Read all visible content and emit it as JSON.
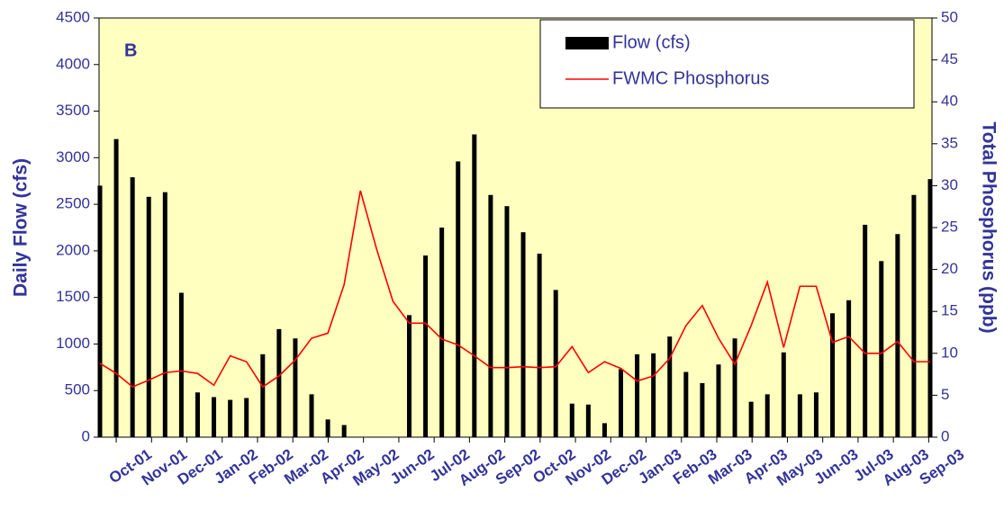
{
  "chart_data": {
    "type": "bar_line",
    "annotation": "B",
    "y_label": "Daily Flow (cfs)",
    "y2_label": "Total Phosphorus (ppb)",
    "categories": [
      null,
      null,
      null,
      null,
      null,
      null,
      null,
      null,
      null,
      null,
      null,
      null,
      null,
      null,
      null,
      null,
      null,
      null,
      null,
      null,
      null,
      null,
      null,
      null,
      null,
      null,
      null,
      null,
      null,
      null,
      null,
      null,
      null,
      null,
      null,
      null,
      null,
      null,
      null,
      null,
      null,
      null,
      null,
      null,
      null,
      null,
      null,
      null,
      null,
      null,
      null,
      null
    ],
    "series": [
      {
        "name": "Flow (cfs)",
        "type": "bar",
        "color": "#000000",
        "values": [
          2700,
          3200,
          2790,
          2580,
          2630,
          1550,
          480,
          430,
          400,
          420,
          890,
          1160,
          1060,
          460,
          190,
          130,
          null,
          null,
          null,
          1310,
          1950,
          2250,
          2960,
          3250,
          2600,
          2480,
          2200,
          1970,
          1580,
          360,
          350,
          150,
          730,
          890,
          900,
          1080,
          700,
          580,
          780,
          1060,
          380,
          460,
          910,
          460,
          480,
          1330,
          1470,
          2280,
          1890,
          2180,
          2600,
          2770
        ]
      },
      {
        "name": "FWMC Phosphorus",
        "type": "line",
        "color": "#ff0000",
        "axis": "y2",
        "values": [
          8.8,
          7.6,
          6.0,
          6.8,
          7.7,
          7.9,
          7.6,
          6.2,
          9.7,
          9.0,
          6.0,
          7.3,
          9.2,
          11.8,
          12.4,
          18.2,
          29.4,
          22.4,
          16.2,
          13.6,
          13.6,
          11.7,
          11.0,
          9.7,
          8.3,
          8.3,
          8.4,
          8.3,
          8.4,
          10.8,
          7.7,
          9.0,
          8.2,
          6.7,
          7.3,
          9.4,
          13.3,
          15.7,
          11.8,
          8.7,
          13.3,
          18.5,
          10.7,
          18.0,
          18.0,
          11.3,
          12.0,
          10.0,
          10.0,
          11.4,
          9.0,
          9.0
        ]
      }
    ],
    "xticks": [
      {
        "value": 1.0,
        "label": "Oct-01"
      },
      {
        "value": 3.17,
        "label": "Nov-01"
      },
      {
        "value": 5.34,
        "label": "Dec-01"
      },
      {
        "value": 7.51,
        "label": "Jan-02"
      },
      {
        "value": 9.68,
        "label": "Feb-02"
      },
      {
        "value": 11.85,
        "label": "Mar-02"
      },
      {
        "value": 14.02,
        "label": "Apr-02"
      },
      {
        "value": 16.19,
        "label": "May-02"
      },
      {
        "value": 18.36,
        "label": "Jun-02"
      },
      {
        "value": 20.53,
        "label": "Jul-02"
      },
      {
        "value": 22.7,
        "label": "Aug-02"
      },
      {
        "value": 24.87,
        "label": "Sep-02"
      },
      {
        "value": 27.04,
        "label": "Oct-02"
      },
      {
        "value": 29.21,
        "label": "Nov-02"
      },
      {
        "value": 31.38,
        "label": "Dec-02"
      },
      {
        "value": 33.55,
        "label": "Jan-03"
      },
      {
        "value": 35.72,
        "label": "Feb-03"
      },
      {
        "value": 37.89,
        "label": "Mar-03"
      },
      {
        "value": 40.06,
        "label": "Apr-03"
      },
      {
        "value": 42.23,
        "label": "May-03"
      },
      {
        "value": 44.4,
        "label": "Jun-03"
      },
      {
        "value": 46.57,
        "label": "Jul-03"
      },
      {
        "value": 48.74,
        "label": "Aug-03"
      },
      {
        "value": 50.91,
        "label": "Sep-03"
      }
    ],
    "ylim": [
      0,
      4500
    ],
    "yticks": [
      0,
      500,
      1000,
      1500,
      2000,
      2500,
      3000,
      3500,
      4000,
      4500
    ],
    "y2lim": [
      0,
      50
    ],
    "y2ticks": [
      0,
      5,
      10,
      15,
      20,
      25,
      30,
      35,
      40,
      45,
      50
    ],
    "grid": false,
    "legend": "top-right",
    "background": "#ffffc0"
  }
}
